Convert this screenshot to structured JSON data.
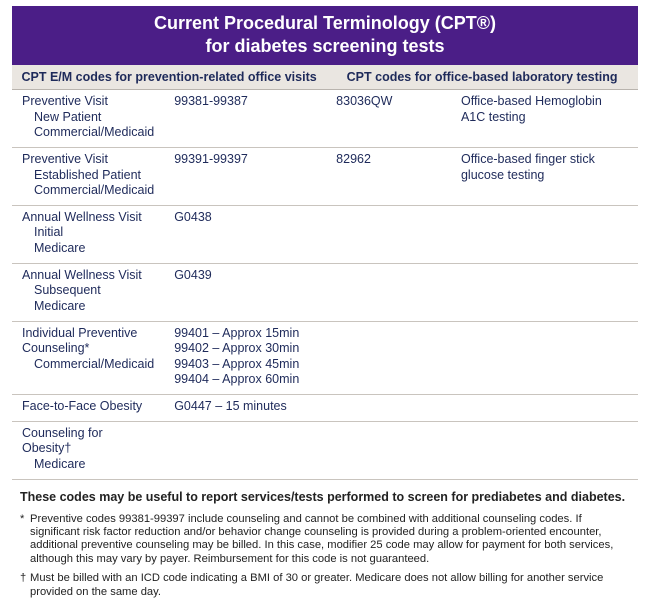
{
  "title_line1": "Current Procedural Terminology (CPT®)",
  "title_line2": "for diabetes screening tests",
  "headers": {
    "left": "CPT E/M codes for prevention-related office visits",
    "right": "CPT codes for office-based laboratory testing"
  },
  "rows": [
    {
      "visit_main": "Preventive Visit",
      "visit_sub1": "New Patient",
      "visit_sub2": "Commercial/Medicaid",
      "codes": [
        "99381-99387"
      ],
      "lab_code": "83036QW",
      "lab_desc": "Office-based Hemoglobin A1C testing"
    },
    {
      "visit_main": "Preventive Visit",
      "visit_sub1": "Established Patient",
      "visit_sub2": "Commercial/Medicaid",
      "codes": [
        "99391-99397"
      ],
      "lab_code": "82962",
      "lab_desc": "Office-based finger stick glucose testing"
    },
    {
      "visit_main": "Annual Wellness Visit",
      "visit_sub1": "Initial",
      "visit_sub2": "Medicare",
      "codes": [
        "G0438"
      ],
      "lab_code": "",
      "lab_desc": ""
    },
    {
      "visit_main": "Annual Wellness Visit",
      "visit_sub1": "Subsequent",
      "visit_sub2": "Medicare",
      "codes": [
        "G0439"
      ],
      "lab_code": "",
      "lab_desc": ""
    },
    {
      "visit_main": "Individual Preventive Counseling*",
      "visit_sub1": "Commercial/Medicaid",
      "visit_sub2": "",
      "codes": [
        "99401 – Approx 15min",
        "99402 – Approx 30min",
        "99403 – Approx 45min",
        "99404 – Approx 60min"
      ],
      "lab_code": "",
      "lab_desc": ""
    },
    {
      "visit_main": "Face-to-Face Obesity",
      "visit_sub1": "",
      "visit_sub2": "",
      "codes": [
        "G0447 – 15 minutes"
      ],
      "lab_code": "",
      "lab_desc": ""
    },
    {
      "visit_main": "Counseling for Obesity†",
      "visit_sub1": "Medicare",
      "visit_sub2": "",
      "codes": [
        ""
      ],
      "lab_code": "",
      "lab_desc": ""
    }
  ],
  "note_bold": "These codes may be useful to report services/tests performed to screen for prediabetes and diabetes.",
  "footnote1_mark": "*",
  "footnote1": "Preventive codes 99381-99397 include counseling and cannot be combined with additional counseling codes.  If significant risk factor reduction and/or behavior change counseling is provided during a problem-oriented encounter, additional preventive counseling may be billed.  In this case, modifier 25 code may allow for payment for both services, although this may vary by payer. Reimbursement for this code is not guaranteed.",
  "footnote2_mark": "†",
  "footnote2": "Must be billed with an ICD code indicating a BMI of 30 or greater.  Medicare does not allow billing for another service provided on the same day.",
  "colors": {
    "title_bg": "#4b1e87",
    "title_fg": "#ffffff",
    "header_bg": "#eae6e1",
    "header_fg": "#1e2a5a",
    "cell_fg": "#1e2a5a",
    "border": "#c9c4be"
  }
}
